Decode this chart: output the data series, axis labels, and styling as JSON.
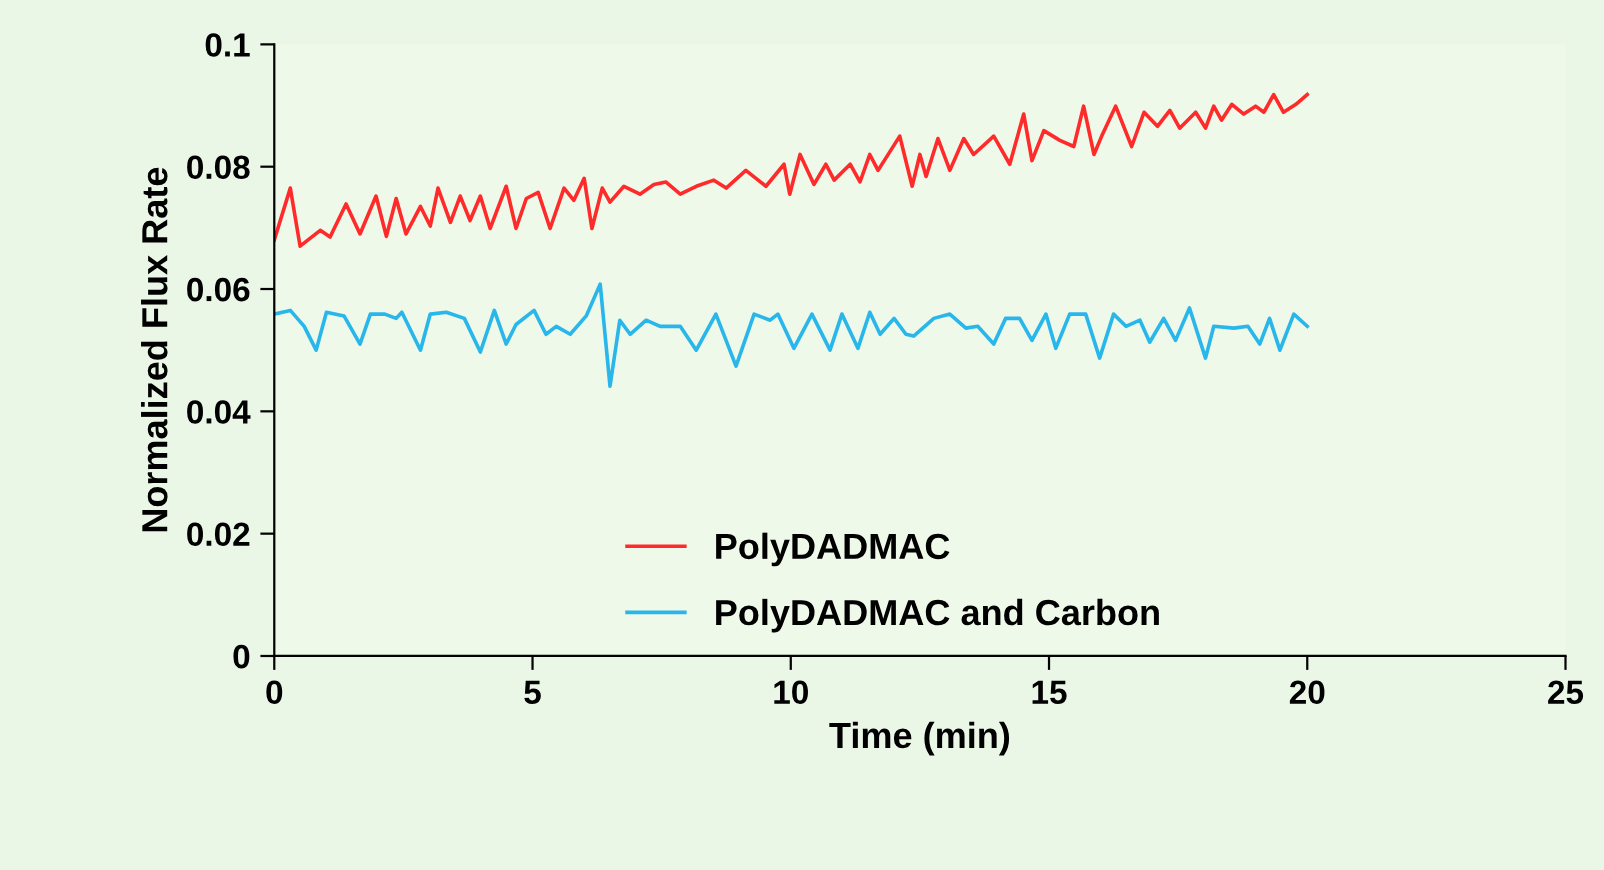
{
  "chart_data": {
    "type": "line",
    "xlabel": "Time (min)",
    "ylabel": "Normalized Flux Rate",
    "xlim": [
      0,
      25
    ],
    "xticks": [
      0,
      5,
      10,
      15,
      20,
      25
    ],
    "ylim": [
      0,
      0.1
    ],
    "yticks": [
      0,
      0.02,
      0.04,
      0.06,
      0.08,
      0.1
    ],
    "grid": false,
    "legend": "bottom",
    "marker": "none",
    "line_style": "solid",
    "series": [
      {
        "name": "PolyDADMAC",
        "color": "#ff2a2a",
        "x": [
          0,
          0.31,
          0.5,
          0.89,
          1.08,
          1.39,
          1.66,
          1.97,
          2.17,
          2.36,
          2.55,
          2.83,
          3.02,
          3.17,
          3.41,
          3.6,
          3.79,
          3.99,
          4.18,
          4.49,
          4.68,
          4.88,
          5.11,
          5.34,
          5.61,
          5.8,
          6.0,
          6.15,
          6.35,
          6.5,
          6.77,
          7.08,
          7.35,
          7.58,
          7.86,
          8.17,
          8.51,
          8.75,
          9.13,
          9.52,
          9.87,
          9.98,
          10.18,
          10.45,
          10.68,
          10.84,
          11.15,
          11.34,
          11.53,
          11.69,
          12.11,
          12.35,
          12.5,
          12.62,
          12.85,
          13.08,
          13.35,
          13.54,
          13.93,
          14.24,
          14.51,
          14.67,
          14.9,
          15.21,
          15.48,
          15.67,
          15.87,
          16.02,
          16.29,
          16.6,
          16.84,
          17.1,
          17.34,
          17.53,
          17.84,
          18.03,
          18.19,
          18.34,
          18.54,
          18.77,
          19.0,
          19.16,
          19.35,
          19.54,
          19.78,
          20.0
        ],
        "values": [
          0.068,
          0.0765,
          0.067,
          0.0696,
          0.0685,
          0.0739,
          0.069,
          0.0752,
          0.0686,
          0.0748,
          0.069,
          0.0735,
          0.0703,
          0.0765,
          0.0709,
          0.0752,
          0.0712,
          0.0752,
          0.0699,
          0.0768,
          0.0699,
          0.0748,
          0.0758,
          0.0699,
          0.0765,
          0.0745,
          0.0781,
          0.0699,
          0.0765,
          0.0742,
          0.0768,
          0.0755,
          0.0771,
          0.0775,
          0.0755,
          0.0768,
          0.0778,
          0.0765,
          0.0794,
          0.0768,
          0.0804,
          0.0755,
          0.082,
          0.0771,
          0.0804,
          0.0778,
          0.0804,
          0.0775,
          0.082,
          0.0794,
          0.085,
          0.0768,
          0.082,
          0.0784,
          0.0846,
          0.0794,
          0.0846,
          0.082,
          0.085,
          0.0804,
          0.0886,
          0.081,
          0.0859,
          0.0843,
          0.0833,
          0.0899,
          0.082,
          0.085,
          0.0899,
          0.0833,
          0.0889,
          0.0866,
          0.0892,
          0.0863,
          0.0889,
          0.0863,
          0.0899,
          0.0876,
          0.0902,
          0.0886,
          0.0899,
          0.0889,
          0.0918,
          0.0889,
          0.0902,
          0.0918
        ]
      },
      {
        "name": "PolyDADMAC and Carbon",
        "color": "#29b6ea",
        "x": [
          0,
          0.31,
          0.58,
          0.81,
          1.01,
          1.35,
          1.66,
          1.86,
          2.14,
          2.36,
          2.47,
          2.83,
          3.02,
          3.33,
          3.68,
          3.99,
          4.26,
          4.49,
          4.68,
          5.03,
          5.26,
          5.46,
          5.73,
          6.04,
          6.31,
          6.5,
          6.69,
          6.89,
          7.2,
          7.47,
          7.86,
          8.17,
          8.55,
          8.94,
          9.29,
          9.6,
          9.75,
          10.06,
          10.41,
          10.76,
          10.99,
          11.3,
          11.53,
          11.73,
          12.0,
          12.23,
          12.38,
          12.77,
          13.08,
          13.39,
          13.62,
          13.93,
          14.16,
          14.43,
          14.67,
          14.94,
          15.13,
          15.4,
          15.71,
          15.98,
          16.25,
          16.49,
          16.76,
          16.95,
          17.22,
          17.45,
          17.72,
          18.03,
          18.19,
          18.58,
          18.85,
          19.08,
          19.27,
          19.47,
          19.74,
          20.0
        ],
        "values": [
          0.0559,
          0.0565,
          0.0539,
          0.05,
          0.0562,
          0.0556,
          0.051,
          0.0559,
          0.0559,
          0.0552,
          0.0562,
          0.05,
          0.0559,
          0.0562,
          0.0552,
          0.0497,
          0.0565,
          0.051,
          0.0542,
          0.0565,
          0.0526,
          0.0539,
          0.0526,
          0.0556,
          0.0608,
          0.0441,
          0.0549,
          0.0526,
          0.0549,
          0.0539,
          0.0539,
          0.05,
          0.0559,
          0.0474,
          0.0559,
          0.0549,
          0.0559,
          0.0503,
          0.0559,
          0.05,
          0.0559,
          0.0503,
          0.0562,
          0.0526,
          0.0552,
          0.0526,
          0.0523,
          0.0552,
          0.0559,
          0.0536,
          0.0539,
          0.051,
          0.0552,
          0.0552,
          0.0516,
          0.0559,
          0.0503,
          0.0559,
          0.0559,
          0.0487,
          0.0559,
          0.0539,
          0.0549,
          0.0513,
          0.0552,
          0.0516,
          0.0569,
          0.0487,
          0.0539,
          0.0536,
          0.0539,
          0.051,
          0.0552,
          0.05,
          0.0559,
          0.0539
        ]
      }
    ]
  }
}
